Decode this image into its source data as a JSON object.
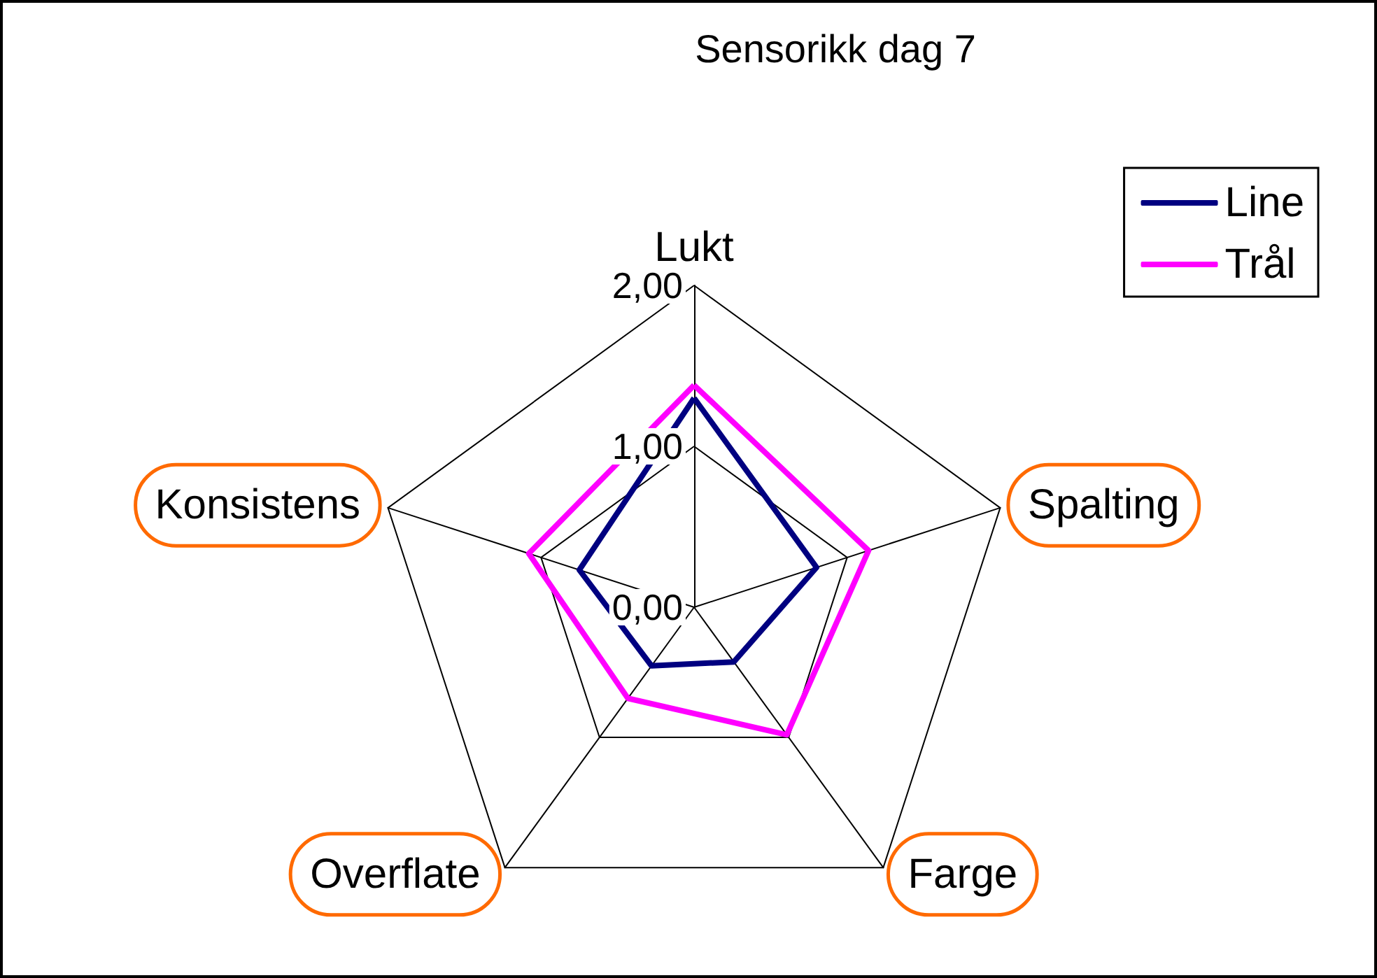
{
  "chart_data": {
    "type": "radar",
    "title": "Sensorikk dag 7",
    "categories": [
      "Lukt",
      "Spalting",
      "Farge",
      "Overflate",
      "Konsistens"
    ],
    "series": [
      {
        "name": "Line",
        "color": "#000080",
        "values": [
          1.3,
          0.8,
          0.42,
          0.45,
          0.75
        ]
      },
      {
        "name": "Trål",
        "color": "#ff00ff",
        "values": [
          1.38,
          1.14,
          0.98,
          0.7,
          1.08
        ]
      }
    ],
    "ylim": [
      0,
      2
    ],
    "yticks": [
      {
        "value": 0,
        "label": "0,00"
      },
      {
        "value": 1,
        "label": "1,00"
      },
      {
        "value": 2,
        "label": "2,00"
      }
    ],
    "grid": true,
    "legend": "top right",
    "marker": "none",
    "line_style": "solid"
  }
}
